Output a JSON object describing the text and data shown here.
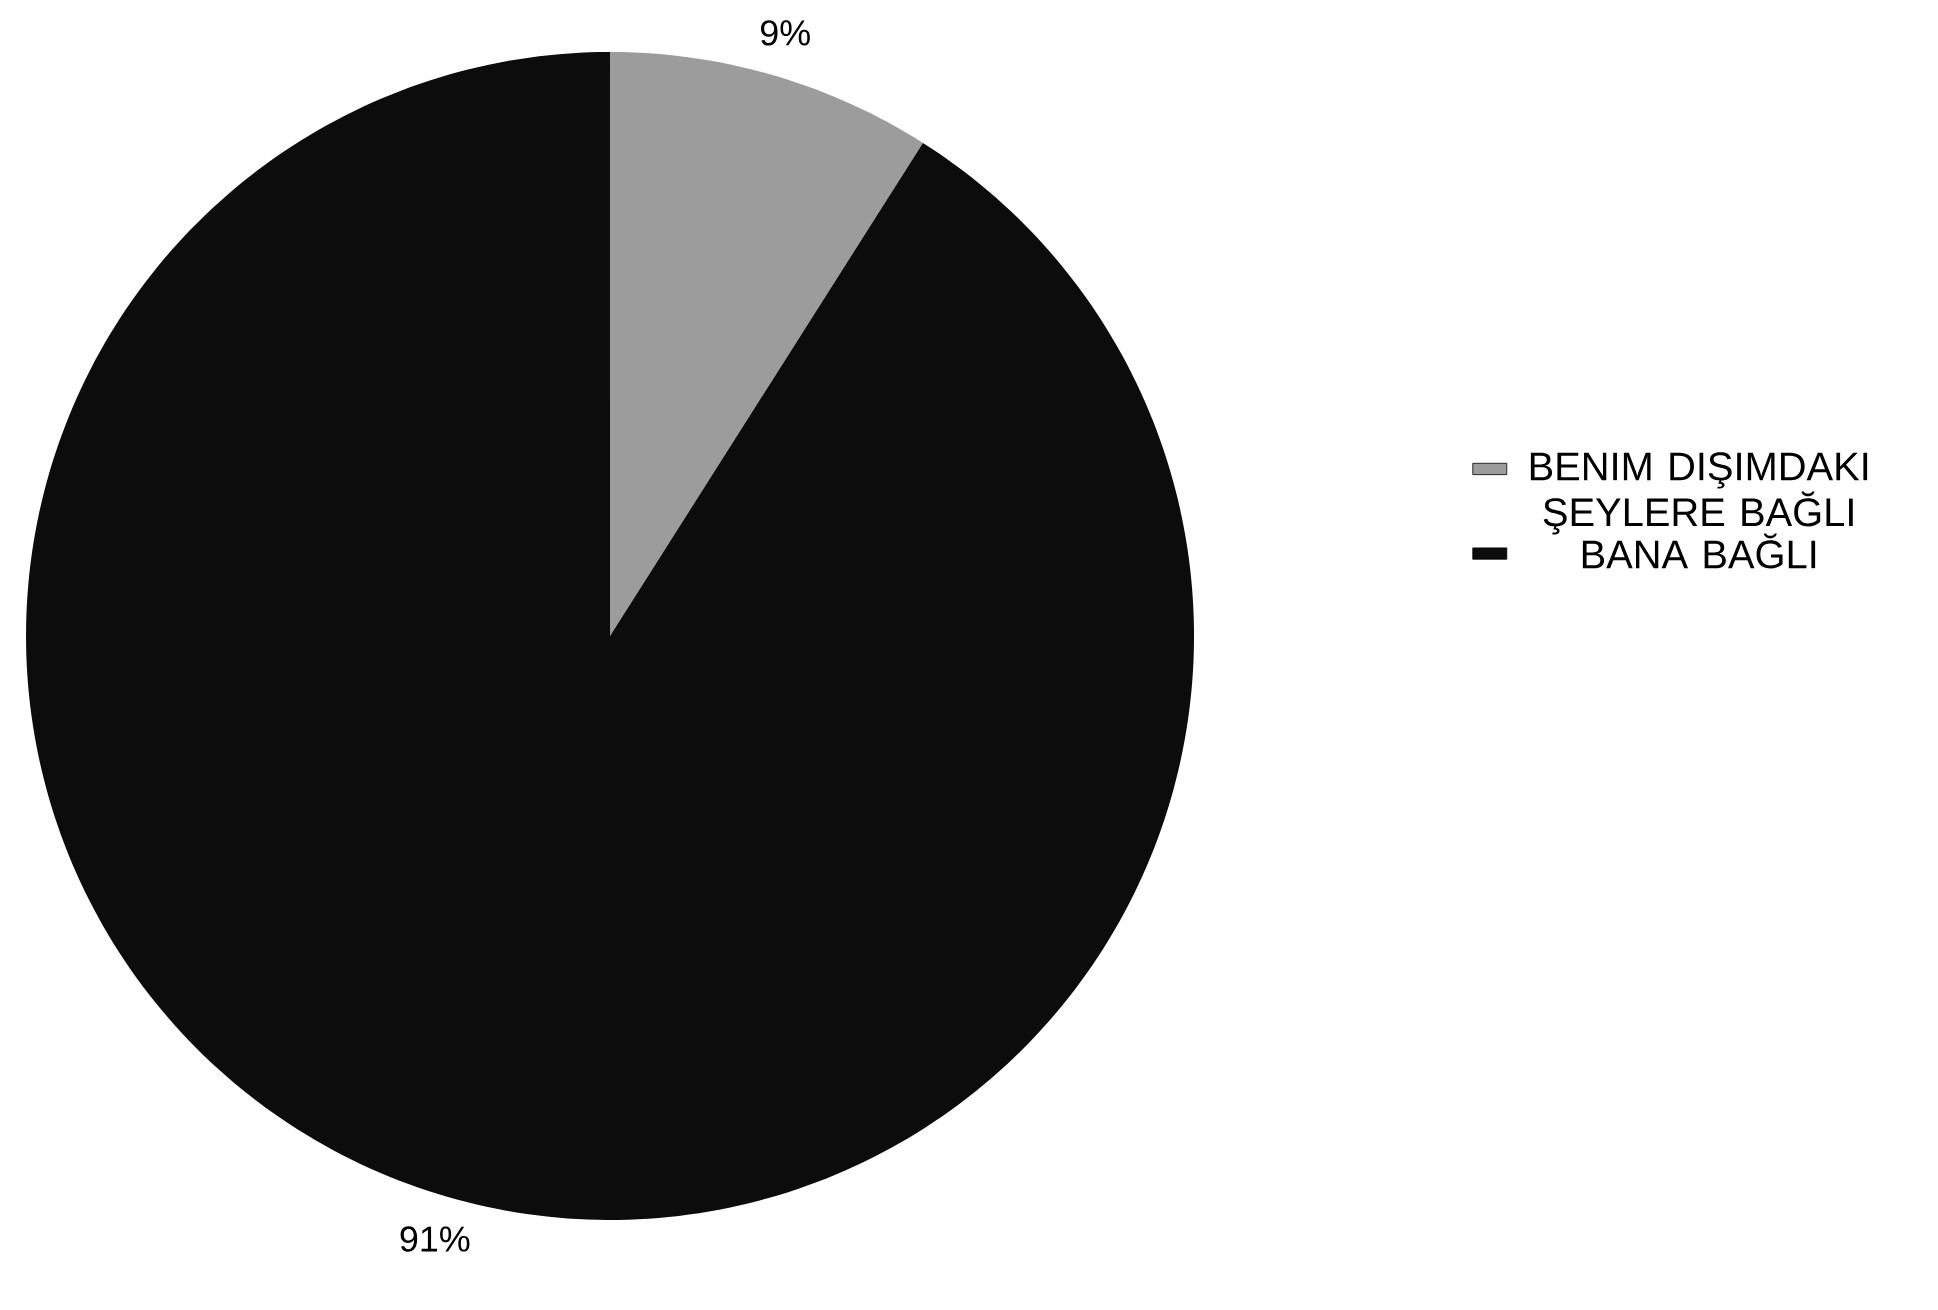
{
  "chart_data": {
    "type": "pie",
    "categories": [
      "BENIM DIŞIMDAKI ŞEYLERE BAĞLI",
      "BANA BAĞLI"
    ],
    "values": [
      9,
      91
    ],
    "colors": [
      "#9c9c9c",
      "#0c0c0c"
    ],
    "value_labels": [
      "9%",
      "91%"
    ],
    "legend": "right"
  }
}
